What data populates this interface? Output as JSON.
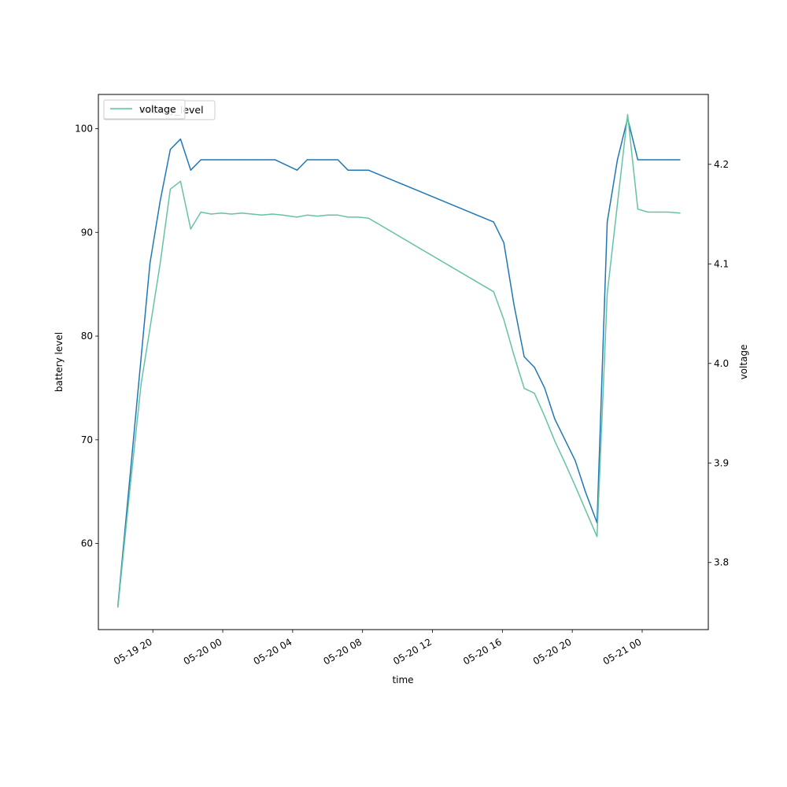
{
  "chart_data": {
    "type": "line",
    "title": "",
    "xlabel": "time",
    "ylabel_left": "battery level",
    "ylabel_right": "voltage",
    "x_tick_labels": [
      "05-19 20",
      "05-20 00",
      "05-20 04",
      "05-20 08",
      "05-20 12",
      "05-20 16",
      "05-20 20",
      "05-21 00"
    ],
    "x_tick_times": [
      "2024-05-19T20:00",
      "2024-05-20T00:00",
      "2024-05-20T04:00",
      "2024-05-20T08:00",
      "2024-05-20T12:00",
      "2024-05-20T16:00",
      "2024-05-20T20:00",
      "2024-05-21T00:00"
    ],
    "xlim": [
      "2024-05-19T16:53",
      "2024-05-21T03:47"
    ],
    "ylim_left": [
      51.7,
      103.3
    ],
    "yticks_left": [
      60,
      70,
      80,
      90,
      100
    ],
    "ylim_right": [
      3.7326,
      4.2702
    ],
    "yticks_right": [
      3.8,
      3.9,
      4.0,
      4.1,
      4.2
    ],
    "grid": false,
    "legend_position": "upper-left",
    "legend_entries_overlapping": [
      "battery_level",
      "voltage"
    ],
    "series": [
      {
        "name": "battery_level",
        "axis": "left",
        "color": "#1f77b4",
        "x": [
          "2024-05-19T18:00",
          "2024-05-19T18:40",
          "2024-05-19T19:20",
          "2024-05-19T19:50",
          "2024-05-19T20:25",
          "2024-05-19T21:00",
          "2024-05-19T21:35",
          "2024-05-19T22:10",
          "2024-05-19T22:45",
          "2024-05-20T00:00",
          "2024-05-20T01:00",
          "2024-05-20T02:00",
          "2024-05-20T03:00",
          "2024-05-20T04:15",
          "2024-05-20T04:50",
          "2024-05-20T06:00",
          "2024-05-20T06:35",
          "2024-05-20T07:10",
          "2024-05-20T08:20",
          "2024-05-20T15:30",
          "2024-05-20T16:05",
          "2024-05-20T16:40",
          "2024-05-20T17:15",
          "2024-05-20T17:50",
          "2024-05-20T18:25",
          "2024-05-20T19:00",
          "2024-05-20T19:35",
          "2024-05-20T20:10",
          "2024-05-20T20:45",
          "2024-05-20T21:25",
          "2024-05-20T22:00",
          "2024-05-20T22:35",
          "2024-05-20T23:10",
          "2024-05-20T23:45",
          "2024-05-21T00:20",
          "2024-05-21T01:30",
          "2024-05-21T02:10"
        ],
        "y": [
          54,
          66,
          78,
          87,
          93,
          98,
          99,
          96,
          97,
          97,
          97,
          97,
          97,
          96,
          97,
          97,
          97,
          96,
          96,
          91,
          89,
          83,
          78,
          77,
          75,
          72,
          70,
          68,
          65,
          62,
          91,
          97,
          101,
          97,
          97,
          97,
          97
        ]
      },
      {
        "name": "voltage",
        "axis": "right",
        "color": "#66c2a5",
        "x": [
          "2024-05-19T18:00",
          "2024-05-19T18:40",
          "2024-05-19T19:20",
          "2024-05-19T19:50",
          "2024-05-19T20:25",
          "2024-05-19T21:00",
          "2024-05-19T21:35",
          "2024-05-19T22:10",
          "2024-05-19T22:45",
          "2024-05-19T23:20",
          "2024-05-19T23:55",
          "2024-05-20T00:30",
          "2024-05-20T01:05",
          "2024-05-20T01:40",
          "2024-05-20T02:15",
          "2024-05-20T02:50",
          "2024-05-20T03:25",
          "2024-05-20T04:15",
          "2024-05-20T04:50",
          "2024-05-20T05:25",
          "2024-05-20T06:00",
          "2024-05-20T06:35",
          "2024-05-20T07:10",
          "2024-05-20T07:45",
          "2024-05-20T08:20",
          "2024-05-20T15:30",
          "2024-05-20T16:05",
          "2024-05-20T16:40",
          "2024-05-20T17:15",
          "2024-05-20T17:50",
          "2024-05-20T18:25",
          "2024-05-20T19:00",
          "2024-05-20T19:35",
          "2024-05-20T20:10",
          "2024-05-20T20:45",
          "2024-05-20T21:25",
          "2024-05-20T22:00",
          "2024-05-20T22:35",
          "2024-05-20T23:10",
          "2024-05-20T23:45",
          "2024-05-21T00:20",
          "2024-05-21T00:55",
          "2024-05-21T01:30",
          "2024-05-21T02:10"
        ],
        "y": [
          3.755,
          3.87,
          3.98,
          4.035,
          4.1,
          4.175,
          4.183,
          4.135,
          4.152,
          4.15,
          4.151,
          4.15,
          4.151,
          4.15,
          4.149,
          4.15,
          4.149,
          4.147,
          4.149,
          4.148,
          4.149,
          4.149,
          4.147,
          4.147,
          4.146,
          4.072,
          4.044,
          4.008,
          3.975,
          3.97,
          3.947,
          3.922,
          3.9,
          3.877,
          3.853,
          3.826,
          4.07,
          4.16,
          4.25,
          4.155,
          4.152,
          4.152,
          4.152,
          4.151
        ]
      }
    ]
  }
}
